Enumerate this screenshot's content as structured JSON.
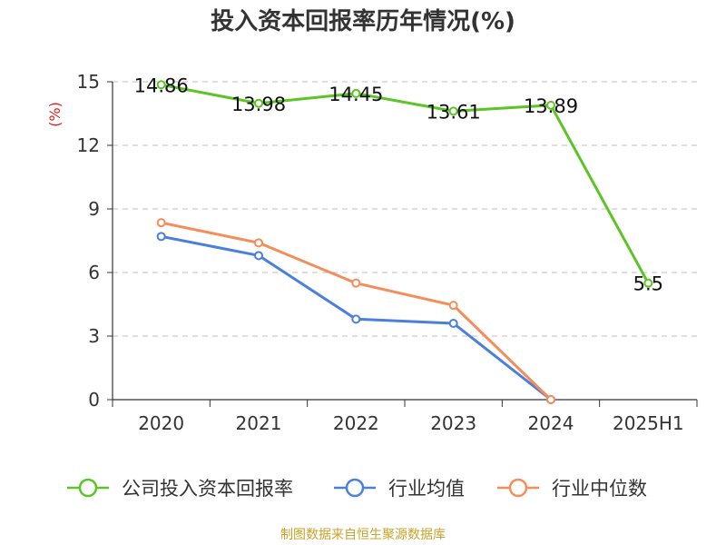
{
  "title": "投入资本回报率历年情况(%)",
  "source": "制图数据来自恒生聚源数据库",
  "colors": {
    "grid": "#bfbfbf",
    "axis": "#333333",
    "ylabel": "#e0201c",
    "source": "#c9a227"
  },
  "chart_data": {
    "type": "line",
    "title": "投入资本回报率历年情况(%)",
    "ylabel": "(%)",
    "xlabel": "",
    "ylim": [
      0,
      15
    ],
    "yticks": [
      0,
      3,
      6,
      9,
      12,
      15
    ],
    "categories": [
      "2020",
      "2021",
      "2022",
      "2023",
      "2024",
      "2025H1"
    ],
    "grid": true,
    "legend_position": "bottom",
    "series": [
      {
        "name": "公司投入资本回报率",
        "color": "#5cc424",
        "values": [
          14.86,
          13.98,
          14.45,
          13.61,
          13.89,
          5.5
        ],
        "labels": [
          "14.86",
          "13.98",
          "14.45",
          "13.61",
          "13.89",
          "5.5"
        ],
        "show_labels": true
      },
      {
        "name": "行业均值",
        "color": "#4a7fdc",
        "values": [
          7.7,
          6.8,
          3.8,
          3.6,
          0.0,
          null
        ],
        "show_labels": false
      },
      {
        "name": "行业中位数",
        "color": "#f58d5a",
        "values": [
          8.35,
          7.4,
          5.5,
          4.45,
          0.0,
          null
        ],
        "show_labels": false
      }
    ]
  }
}
